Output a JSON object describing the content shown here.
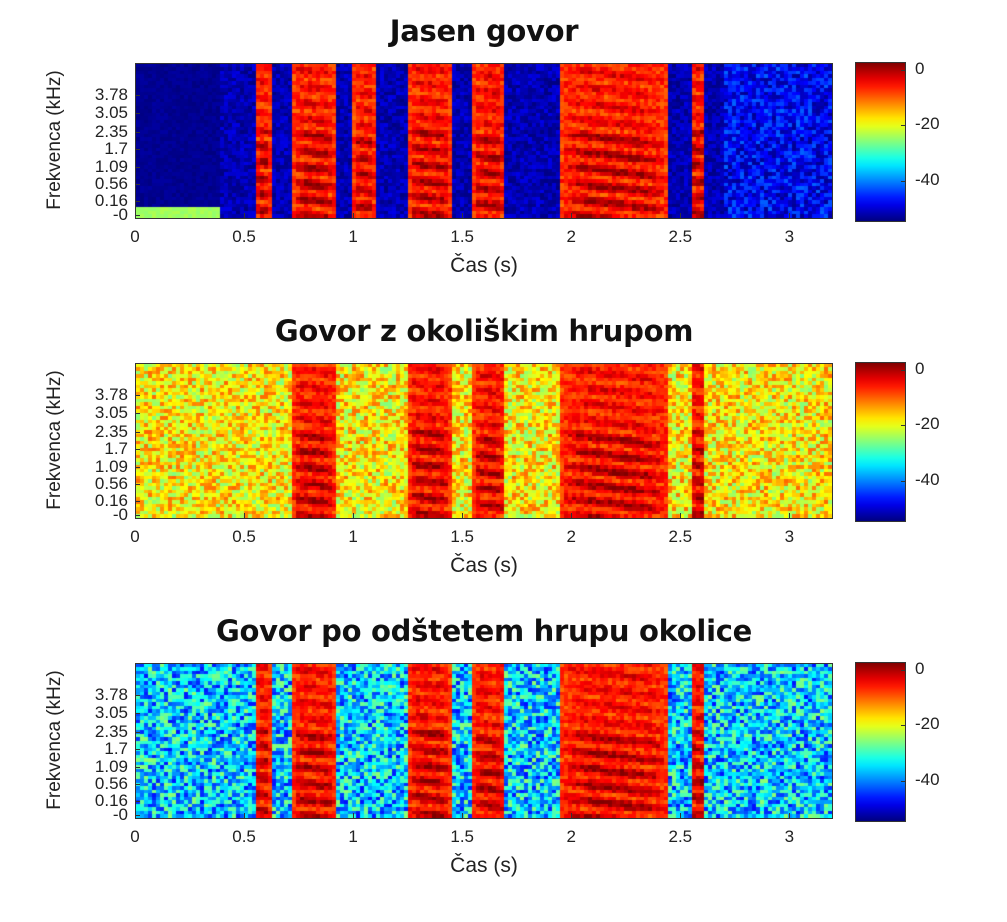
{
  "chart_data": [
    {
      "type": "heatmap",
      "title": "Jasen govor",
      "xlabel": "Čas (s)",
      "ylabel": "Frekvenca (kHz)",
      "xlim": [
        0,
        3.2
      ],
      "x_ticks": [
        "0",
        "0.5",
        "1",
        "1.5",
        "2",
        "2.5",
        "3"
      ],
      "y_ticks": [
        "-0",
        "0.16",
        "0.56",
        "1.09",
        "1.7",
        "2.35",
        "3.05",
        "3.78"
      ],
      "colorbar_ticks": [
        "0",
        "-20",
        "-40"
      ],
      "colorbar_range": [
        -55,
        3
      ],
      "colormap": "jet",
      "background_level_db": -52,
      "speech_segments_s": [
        [
          0.55,
          0.62
        ],
        [
          0.72,
          0.92
        ],
        [
          1.0,
          1.1
        ],
        [
          1.25,
          1.45
        ],
        [
          1.55,
          1.7
        ],
        [
          1.95,
          2.45
        ],
        [
          2.55,
          2.62
        ]
      ]
    },
    {
      "type": "heatmap",
      "title": "Govor z okoliškim hrupom",
      "xlabel": "Čas (s)",
      "ylabel": "Frekvenca (kHz)",
      "xlim": [
        0,
        3.2
      ],
      "x_ticks": [
        "0",
        "0.5",
        "1",
        "1.5",
        "2",
        "2.5",
        "3"
      ],
      "y_ticks": [
        "-0",
        "0.16",
        "0.56",
        "1.09",
        "1.7",
        "2.35",
        "3.05",
        "3.78"
      ],
      "colorbar_ticks": [
        "0",
        "-20",
        "-40"
      ],
      "colorbar_range": [
        -55,
        3
      ],
      "colormap": "jet",
      "background_level_db": -18,
      "speech_segments_s": [
        [
          0.72,
          0.92
        ],
        [
          1.25,
          1.45
        ],
        [
          1.55,
          1.7
        ],
        [
          1.95,
          2.45
        ],
        [
          2.55,
          2.62
        ]
      ]
    },
    {
      "type": "heatmap",
      "title": "Govor po odštetem hrupu okolice",
      "xlabel": "Čas (s)",
      "ylabel": "Frekvenca (kHz)",
      "xlim": [
        0,
        3.2
      ],
      "x_ticks": [
        "0",
        "0.5",
        "1",
        "1.5",
        "2",
        "2.5",
        "3"
      ],
      "y_ticks": [
        "-0",
        "0.16",
        "0.56",
        "1.09",
        "1.7",
        "2.35",
        "3.05",
        "3.78"
      ],
      "colorbar_ticks": [
        "0",
        "-20",
        "-40"
      ],
      "colorbar_range": [
        -55,
        3
      ],
      "colormap": "jet",
      "background_level_db": -36,
      "speech_segments_s": [
        [
          0.55,
          0.62
        ],
        [
          0.72,
          0.92
        ],
        [
          1.25,
          1.45
        ],
        [
          1.55,
          1.7
        ],
        [
          1.95,
          2.45
        ],
        [
          2.55,
          2.62
        ]
      ]
    }
  ]
}
